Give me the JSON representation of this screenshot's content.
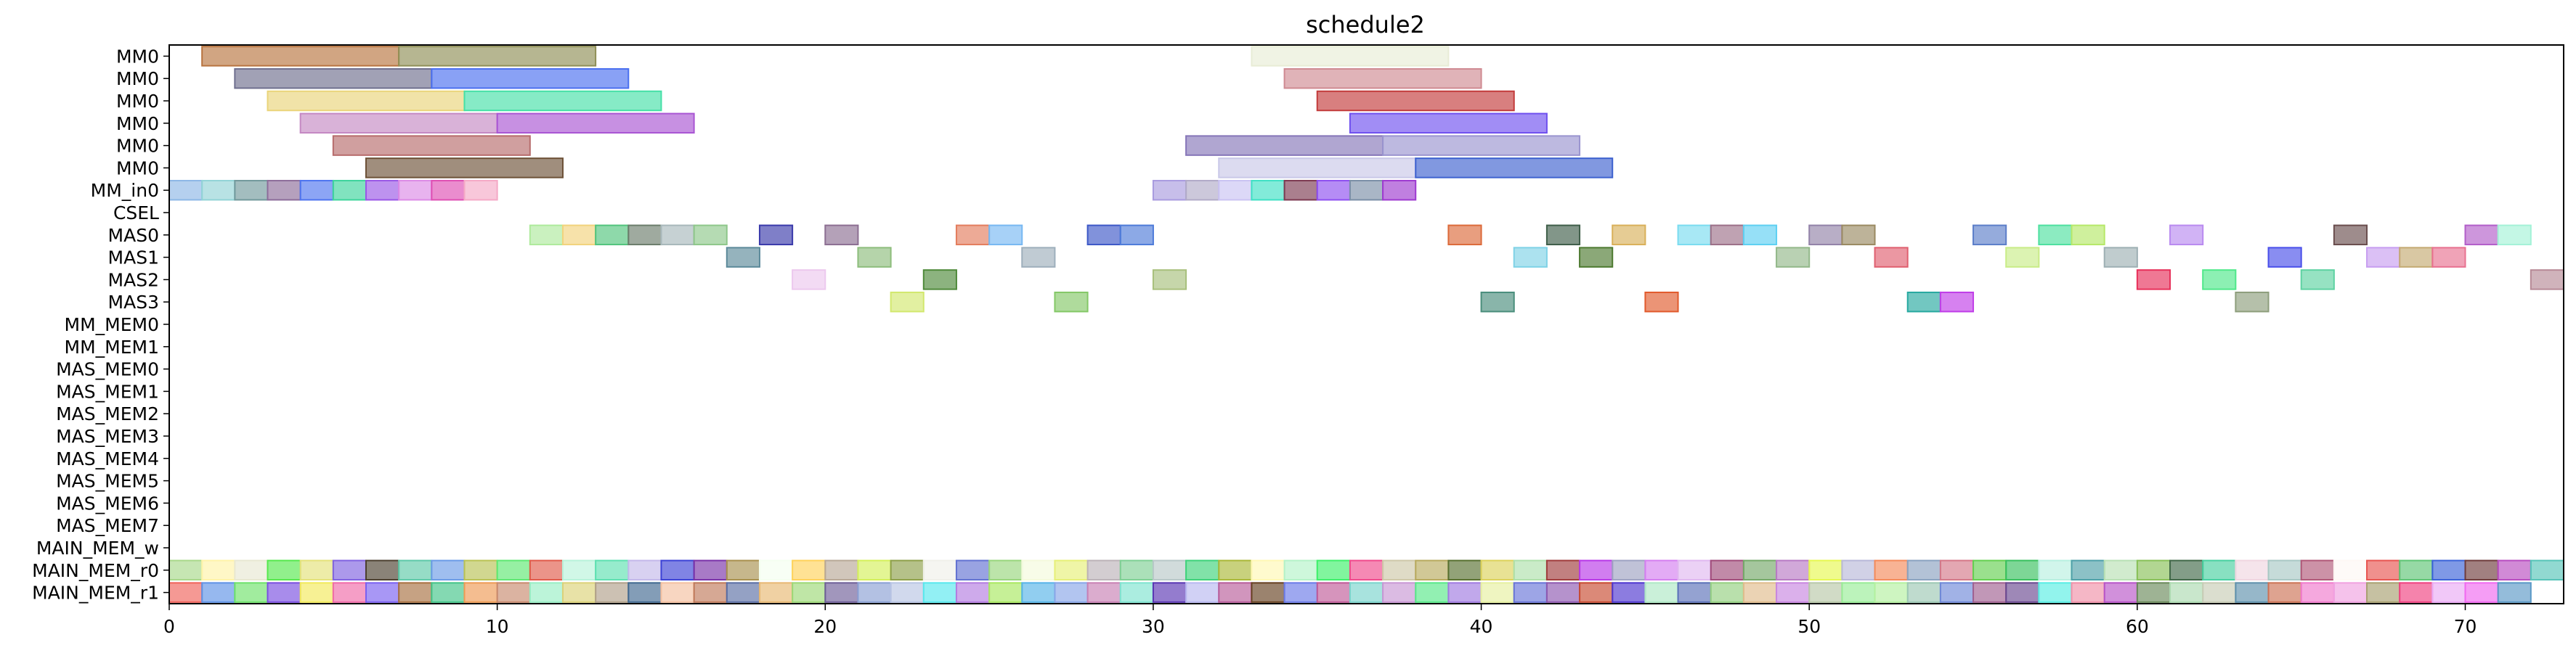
{
  "chart_data": {
    "type": "gantt",
    "title": "schedule2",
    "xlim": [
      0,
      73
    ],
    "x_ticks": [
      0,
      10,
      20,
      30,
      40,
      50,
      60,
      70
    ],
    "rows": [
      "MM0",
      "MM0",
      "MM0",
      "MM0",
      "MM0",
      "MM0",
      "MM_in0",
      "CSEL",
      "MAS0",
      "MAS1",
      "MAS2",
      "MAS3",
      "MM_MEM0",
      "MM_MEM1",
      "MAS_MEM0",
      "MAS_MEM1",
      "MAS_MEM2",
      "MAS_MEM3",
      "MAS_MEM4",
      "MAS_MEM5",
      "MAS_MEM6",
      "MAS_MEM7",
      "MAIN_MEM_w",
      "MAIN_MEM_r0",
      "MAIN_MEM_r1"
    ],
    "tasks": [
      {
        "row": 0,
        "start": 1,
        "end": 7,
        "color": "#b8743f"
      },
      {
        "row": 0,
        "start": 7,
        "end": 13,
        "color": "#8f8f56"
      },
      {
        "row": 0,
        "start": 33,
        "end": 39,
        "color": "#e8ecd6"
      },
      {
        "row": 1,
        "start": 2,
        "end": 8,
        "color": "#6f6f8e"
      },
      {
        "row": 1,
        "start": 8,
        "end": 14,
        "color": "#4a6ff0"
      },
      {
        "row": 1,
        "start": 34,
        "end": 40,
        "color": "#cf8a92"
      },
      {
        "row": 2,
        "start": 3,
        "end": 9,
        "color": "#ead47a"
      },
      {
        "row": 2,
        "start": 9,
        "end": 15,
        "color": "#45e0a7"
      },
      {
        "row": 2,
        "start": 35,
        "end": 41,
        "color": "#c33b3b"
      },
      {
        "row": 3,
        "start": 4,
        "end": 10,
        "color": "#c488c3"
      },
      {
        "row": 3,
        "start": 10,
        "end": 16,
        "color": "#a955d3"
      },
      {
        "row": 3,
        "start": 36,
        "end": 42,
        "color": "#6f50ef"
      },
      {
        "row": 4,
        "start": 5,
        "end": 11,
        "color": "#b76c6c"
      },
      {
        "row": 4,
        "start": 31,
        "end": 37,
        "color": "#8676b8"
      },
      {
        "row": 4,
        "start": 37,
        "end": 43,
        "color": "#9a94cf"
      },
      {
        "row": 5,
        "start": 6,
        "end": 12,
        "color": "#6d5137"
      },
      {
        "row": 5,
        "start": 32,
        "end": 38,
        "color": "#c9c8e8"
      },
      {
        "row": 5,
        "start": 38,
        "end": 44,
        "color": "#3d61cf"
      },
      {
        "row": 6,
        "start": 0,
        "end": 1,
        "color": "#8db7e6"
      },
      {
        "row": 6,
        "start": 1,
        "end": 2,
        "color": "#92d3d6"
      },
      {
        "row": 6,
        "start": 2,
        "end": 3,
        "color": "#72999c"
      },
      {
        "row": 6,
        "start": 3,
        "end": 4,
        "color": "#8d6d9a"
      },
      {
        "row": 6,
        "start": 4,
        "end": 5,
        "color": "#4e74ef"
      },
      {
        "row": 6,
        "start": 5,
        "end": 6,
        "color": "#3ed49c"
      },
      {
        "row": 6,
        "start": 6,
        "end": 7,
        "color": "#9a57e6"
      },
      {
        "row": 6,
        "start": 7,
        "end": 8,
        "color": "#dc8be6"
      },
      {
        "row": 6,
        "start": 8,
        "end": 9,
        "color": "#df4fb3"
      },
      {
        "row": 6,
        "start": 9,
        "end": 10,
        "color": "#f5a9c6"
      },
      {
        "row": 6,
        "start": 30,
        "end": 31,
        "color": "#a99bdf"
      },
      {
        "row": 6,
        "start": 31,
        "end": 32,
        "color": "#b1aac8"
      },
      {
        "row": 6,
        "start": 32,
        "end": 33,
        "color": "#cac3f2"
      },
      {
        "row": 6,
        "start": 33,
        "end": 34,
        "color": "#3fe0c4"
      },
      {
        "row": 6,
        "start": 34,
        "end": 35,
        "color": "#7d3a52"
      },
      {
        "row": 6,
        "start": 35,
        "end": 36,
        "color": "#8e4ff0"
      },
      {
        "row": 6,
        "start": 36,
        "end": 37,
        "color": "#7b8fa7"
      },
      {
        "row": 6,
        "start": 37,
        "end": 38,
        "color": "#9e3ad0"
      },
      {
        "row": 8,
        "start": 11,
        "end": 12,
        "color": "#aeea9c"
      },
      {
        "row": 8,
        "start": 12,
        "end": 13,
        "color": "#f2d37c"
      },
      {
        "row": 8,
        "start": 13,
        "end": 14,
        "color": "#52c47d"
      },
      {
        "row": 8,
        "start": 14,
        "end": 15,
        "color": "#6c7d6c"
      },
      {
        "row": 8,
        "start": 15,
        "end": 16,
        "color": "#a8b8bb"
      },
      {
        "row": 8,
        "start": 16,
        "end": 17,
        "color": "#8ec78a"
      },
      {
        "row": 8,
        "start": 18,
        "end": 19,
        "color": "#3a3aab"
      },
      {
        "row": 8,
        "start": 20,
        "end": 21,
        "color": "#8c6f92"
      },
      {
        "row": 8,
        "start": 24,
        "end": 25,
        "color": "#e37d5e"
      },
      {
        "row": 8,
        "start": 25,
        "end": 26,
        "color": "#78b8f2"
      },
      {
        "row": 8,
        "start": 28,
        "end": 29,
        "color": "#3d58c7"
      },
      {
        "row": 8,
        "start": 29,
        "end": 30,
        "color": "#4e7bd9"
      },
      {
        "row": 8,
        "start": 39,
        "end": 40,
        "color": "#dc6a3a"
      },
      {
        "row": 8,
        "start": 42,
        "end": 43,
        "color": "#3f5e49"
      },
      {
        "row": 8,
        "start": 44,
        "end": 45,
        "color": "#d9b05a"
      },
      {
        "row": 8,
        "start": 46,
        "end": 47,
        "color": "#7adcf0"
      },
      {
        "row": 8,
        "start": 47,
        "end": 48,
        "color": "#9c7088"
      },
      {
        "row": 8,
        "start": 48,
        "end": 49,
        "color": "#5ed0f2"
      },
      {
        "row": 8,
        "start": 50,
        "end": 51,
        "color": "#9282a8"
      },
      {
        "row": 8,
        "start": 51,
        "end": 52,
        "color": "#9a8a62"
      },
      {
        "row": 8,
        "start": 55,
        "end": 56,
        "color": "#5c7ec9"
      },
      {
        "row": 8,
        "start": 57,
        "end": 58,
        "color": "#4ee0a0"
      },
      {
        "row": 8,
        "start": 58,
        "end": 59,
        "color": "#b6e868"
      },
      {
        "row": 8,
        "start": 61,
        "end": 62,
        "color": "#b98af0"
      },
      {
        "row": 8,
        "start": 66,
        "end": 67,
        "color": "#6a4e4e"
      },
      {
        "row": 8,
        "start": 70,
        "end": 71,
        "color": "#b25ec9"
      },
      {
        "row": 8,
        "start": 71,
        "end": 72,
        "color": "#a4f2d7"
      },
      {
        "row": 9,
        "start": 17,
        "end": 18,
        "color": "#5c8a9a"
      },
      {
        "row": 9,
        "start": 21,
        "end": 22,
        "color": "#8dbd7c"
      },
      {
        "row": 9,
        "start": 26,
        "end": 27,
        "color": "#9eafbc"
      },
      {
        "row": 9,
        "start": 41,
        "end": 42,
        "color": "#7fd2e6"
      },
      {
        "row": 9,
        "start": 43,
        "end": 44,
        "color": "#4d7a30"
      },
      {
        "row": 9,
        "start": 49,
        "end": 50,
        "color": "#93b88a"
      },
      {
        "row": 9,
        "start": 52,
        "end": 53,
        "color": "#e06070"
      },
      {
        "row": 9,
        "start": 56,
        "end": 57,
        "color": "#c9ec88"
      },
      {
        "row": 9,
        "start": 59,
        "end": 60,
        "color": "#9eb0b4"
      },
      {
        "row": 9,
        "start": 64,
        "end": 65,
        "color": "#4a50ea"
      },
      {
        "row": 9,
        "start": 67,
        "end": 68,
        "color": "#c79ef0"
      },
      {
        "row": 9,
        "start": 68,
        "end": 69,
        "color": "#c4aa72"
      },
      {
        "row": 9,
        "start": 69,
        "end": 70,
        "color": "#e87190"
      },
      {
        "row": 10,
        "start": 19,
        "end": 20,
        "color": "#ecc8ee"
      },
      {
        "row": 10,
        "start": 23,
        "end": 24,
        "color": "#4f8a3a"
      },
      {
        "row": 10,
        "start": 30,
        "end": 31,
        "color": "#a8c07c"
      },
      {
        "row": 10,
        "start": 60,
        "end": 61,
        "color": "#e7305a"
      },
      {
        "row": 10,
        "start": 62,
        "end": 63,
        "color": "#4fe88a"
      },
      {
        "row": 10,
        "start": 65,
        "end": 66,
        "color": "#5ed2a2"
      },
      {
        "row": 10,
        "start": 72,
        "end": 73,
        "color": "#b78a96"
      },
      {
        "row": 11,
        "start": 22,
        "end": 23,
        "color": "#d2e86e"
      },
      {
        "row": 11,
        "start": 27,
        "end": 28,
        "color": "#84c867"
      },
      {
        "row": 11,
        "start": 40,
        "end": 41,
        "color": "#4a8e7c"
      },
      {
        "row": 11,
        "start": 45,
        "end": 46,
        "color": "#e15a2c"
      },
      {
        "row": 11,
        "start": 53,
        "end": 54,
        "color": "#27a9a0"
      },
      {
        "row": 11,
        "start": 54,
        "end": 55,
        "color": "#c03ee8"
      },
      {
        "row": 11,
        "start": 63,
        "end": 64,
        "color": "#8e9e7c"
      }
    ],
    "mem_rows": {
      "MAIN_MEM_r0": [
        "#a8d88a",
        "#fff3a8",
        "#e8e8d2",
        "#56e84e",
        "#e4e27a",
        "#8062e0",
        "#4c4030",
        "#5ec9a8",
        "#6b9be6",
        "#b9c254",
        "#5ee872",
        "#e05a4a",
        "#b8f2da",
        "#5de0b0",
        "#c3b8ea",
        "#3c42d6",
        "#7a32a8",
        "#a8904e",
        "#f4fff0",
        "#ffd25a",
        "#b8a896",
        "#d4f05a",
        "#8ea04a",
        "#f0f0ea",
        "#6272d2",
        "#98d67c",
        "#f4fadc",
        "#e6f078",
        "#bcb2b8",
        "#7ed094",
        "#b8c8c8",
        "#3ed27a",
        "#aab838",
        "#fff8b4",
        "#b4f2c8",
        "#3ef06a",
        "#f04a8c",
        "#cec8a8",
        "#b8aa5e",
        "#587030",
        "#dcd25a",
        "#aee0aa",
        "#a03c3c",
        "#b838e8",
        "#9ea2c2",
        "#d47ef0",
        "#e0b8f0",
        "#a04c7a",
        "#74a868",
        "#b87ac4",
        "#e6f850",
        "#b8b8d8",
        "#f48a5a",
        "#8aa2c0",
        "#d47888",
        "#64d050",
        "#38c05e",
        "#b8f0e0",
        "#4ea0a8",
        "#b8e0b4",
        "#88c058",
        "#406848",
        "#48d0a0",
        "#f0d6e0",
        "#a8c8c4",
        "#b05878",
        "#fef8f4",
        "#e85450",
        "#5ec474",
        "#3a62d8",
        "#6e3c3c",
        "#b84cc0",
        "#56c4b8"
      ],
      "MAIN_MEM_r1": [
        "#f0625a",
        "#5e92e6",
        "#6ee26a",
        "#7a4ee0",
        "#f2ea5a",
        "#f06aa8",
        "#7a60f0",
        "#a87040",
        "#42c488",
        "#ee9a54",
        "#c88a6e",
        "#98eec4",
        "#dcd278",
        "#b0a08a",
        "#406890",
        "#f4c0a0",
        "#c07a5a",
        "#5a6ea4",
        "#e8b872",
        "#9cd876",
        "#6e5e98",
        "#8aa0d4",
        "#b8c4e4",
        "#58e8ee",
        "#b47ce0",
        "#a8e860",
        "#56b4e8",
        "#88a6e8",
        "#c880b4",
        "#7ee4d0",
        "#5a36b4",
        "#b8b8f0",
        "#b85c9a",
        "#664020",
        "#6a7ae8",
        "#c05a98",
        "#7ad4cc",
        "#c896d4",
        "#58e888",
        "#a07ae0",
        "#e6f0a0",
        "#6874d8",
        "#8e58b0",
        "#c84a30",
        "#4e36d0",
        "#aee8c4",
        "#5a70b8",
        "#94d080",
        "#e0bc8c",
        "#c886e0",
        "#b8c8a8",
        "#98ec96",
        "#b4f0a0",
        "#9cc8b4",
        "#6e88d8",
        "#a06090",
        "#6a4890",
        "#58eee4",
        "#f090a8",
        "#b854c8",
        "#6a8a5a",
        "#acdab0",
        "#c8ccb6",
        "#5e90ac",
        "#cc7254",
        "#f07acc",
        "#f0a2e0",
        "#a8a070",
        "#f04080",
        "#eaaaf4",
        "#f068f0",
        "#5a98c6"
      ]
    }
  }
}
